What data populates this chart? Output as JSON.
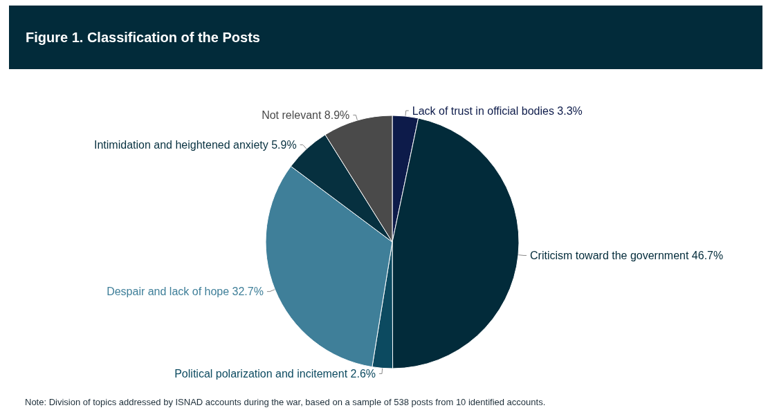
{
  "chart_data": {
    "type": "pie",
    "title": "Figure 1. Classification of the Posts",
    "categories": [
      "Lack of trust in official bodies",
      "Criticism toward the government",
      "Political polarization and incitement",
      "Despair and lack of hope",
      "Intimidation and heightened anxiety",
      "Not relevant"
    ],
    "values": [
      3.3,
      46.7,
      2.6,
      32.7,
      5.9,
      8.9
    ],
    "colors": [
      "#0d1b4a",
      "#022b3a",
      "#0c4a60",
      "#3f7f99",
      "#06303f",
      "#4a4a4a"
    ],
    "value_labels": [
      "3.3%",
      "46.7%",
      "2.6%",
      "32.7%",
      "5.9%",
      "8.9%"
    ],
    "legend": false,
    "annotations": [
      "Note: Division of topics addressed by ISNAD accounts during the war, based on a sample of 538 posts from 10 identified accounts."
    ]
  }
}
